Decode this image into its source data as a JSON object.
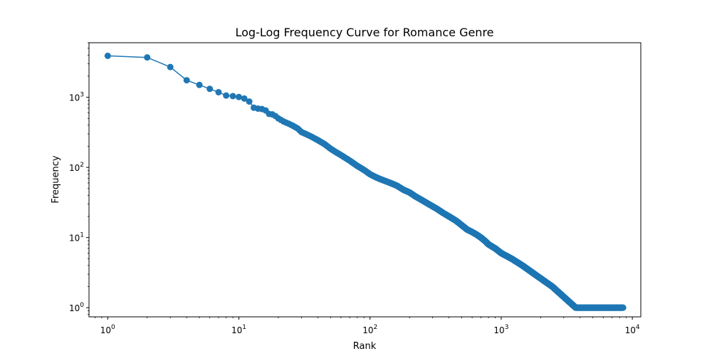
{
  "chart_data": {
    "type": "line",
    "title": "Log-Log Frequency Curve for Romance Genre",
    "xlabel": "Rank",
    "ylabel": "Frequency",
    "x_scale": "log",
    "y_scale": "log",
    "xlim": [
      0.72,
      11600
    ],
    "ylim": [
      0.74,
      6000
    ],
    "grid": false,
    "marker": "circle",
    "series_color": "#1f77b4",
    "x_ticks": [
      {
        "value": 1,
        "base": "10",
        "exp": "0"
      },
      {
        "value": 10,
        "base": "10",
        "exp": "1"
      },
      {
        "value": 100,
        "base": "10",
        "exp": "2"
      },
      {
        "value": 1000,
        "base": "10",
        "exp": "3"
      },
      {
        "value": 10000,
        "base": "10",
        "exp": "4"
      }
    ],
    "y_ticks": [
      {
        "value": 1,
        "base": "10",
        "exp": "0"
      },
      {
        "value": 10,
        "base": "10",
        "exp": "1"
      },
      {
        "value": 100,
        "base": "10",
        "exp": "2"
      },
      {
        "value": 1000,
        "base": "10",
        "exp": "3"
      }
    ],
    "series": [
      {
        "points": [
          [
            1,
            3900
          ],
          [
            2,
            3700
          ],
          [
            3,
            2700
          ],
          [
            4,
            1750
          ],
          [
            5,
            1500
          ],
          [
            6,
            1320
          ],
          [
            7,
            1180
          ],
          [
            8,
            1060
          ],
          [
            9,
            1040
          ],
          [
            10,
            1010
          ],
          [
            11,
            960
          ],
          [
            12,
            870
          ],
          [
            13,
            710
          ],
          [
            14,
            690
          ],
          [
            15,
            680
          ],
          [
            16,
            650
          ],
          [
            17,
            580
          ],
          [
            18,
            570
          ],
          [
            19,
            540
          ],
          [
            20,
            500
          ],
          [
            22,
            450
          ],
          [
            24,
            420
          ],
          [
            26,
            390
          ],
          [
            28,
            360
          ],
          [
            30,
            320
          ],
          [
            35,
            280
          ],
          [
            40,
            245
          ],
          [
            45,
            215
          ],
          [
            50,
            185
          ],
          [
            55,
            165
          ],
          [
            60,
            150
          ],
          [
            70,
            125
          ],
          [
            80,
            105
          ],
          [
            90,
            92
          ],
          [
            100,
            80
          ],
          [
            110,
            73
          ],
          [
            120,
            68
          ],
          [
            140,
            61
          ],
          [
            160,
            55
          ],
          [
            180,
            48
          ],
          [
            200,
            44
          ],
          [
            220,
            39
          ],
          [
            250,
            34
          ],
          [
            280,
            30
          ],
          [
            320,
            26
          ],
          [
            360,
            22.5
          ],
          [
            400,
            20
          ],
          [
            450,
            17.5
          ],
          [
            500,
            15
          ],
          [
            550,
            13
          ],
          [
            600,
            12
          ],
          [
            650,
            11
          ],
          [
            700,
            10
          ],
          [
            750,
            9
          ],
          [
            800,
            8
          ],
          [
            900,
            7
          ],
          [
            1000,
            6
          ],
          [
            1200,
            5
          ],
          [
            1450,
            4
          ],
          [
            1800,
            3
          ],
          [
            2450,
            2
          ],
          [
            3700,
            1
          ],
          [
            8500,
            1
          ]
        ]
      }
    ]
  }
}
